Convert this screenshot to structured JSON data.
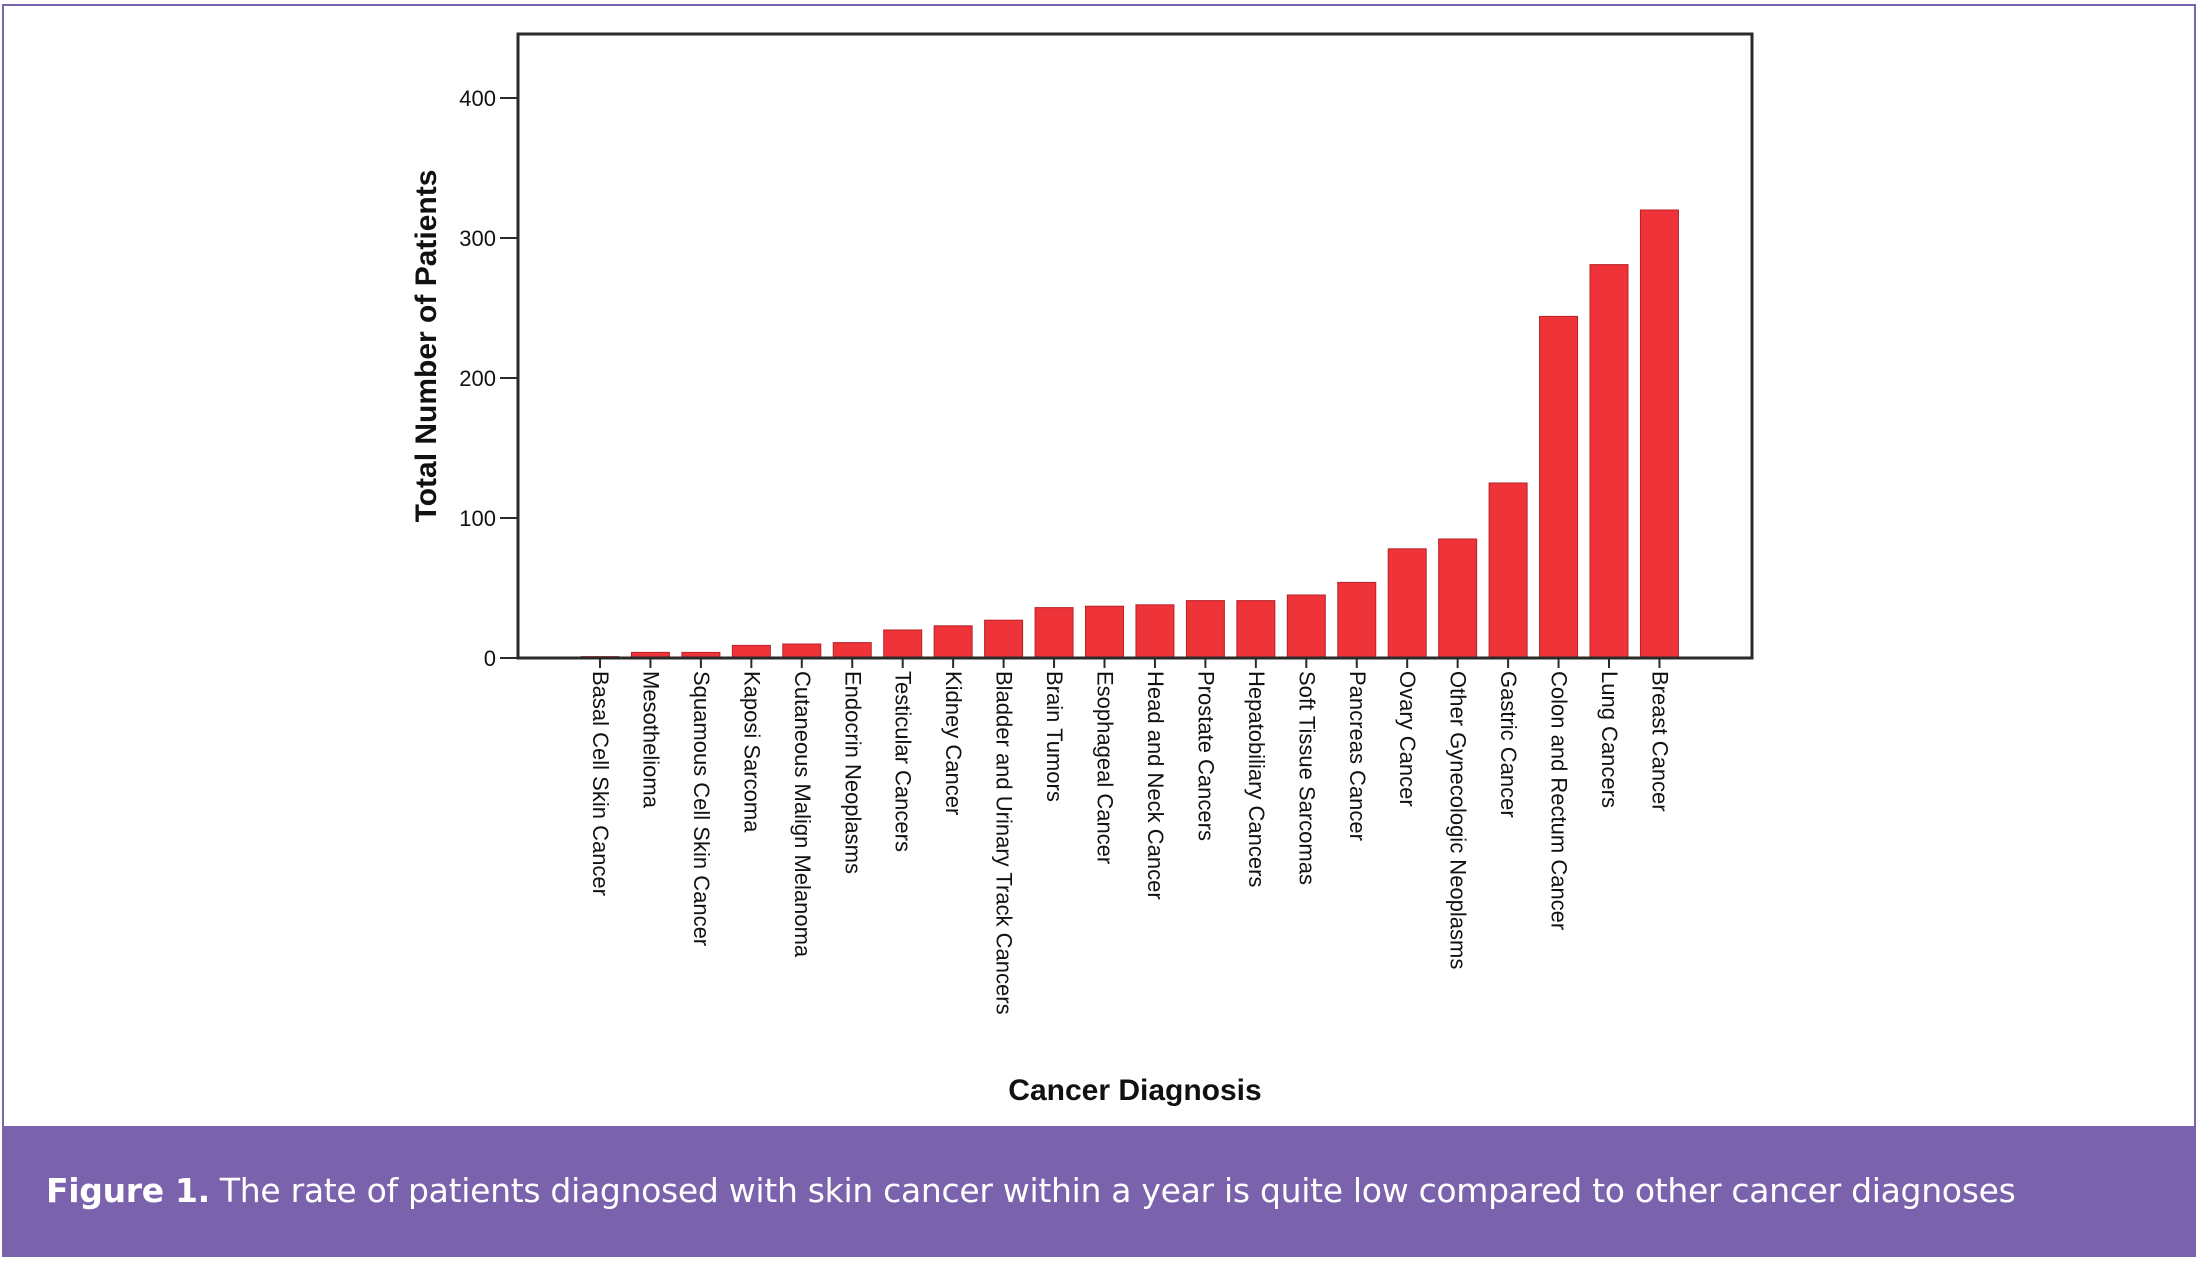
{
  "caption": {
    "label": "Figure 1.",
    "text": "The rate of patients diagnosed with skin cancer within a year is quite low compared to other cancer diagnoses"
  },
  "colors": {
    "bar": "#ee3339",
    "frame": "#7a62ad",
    "caption_background": "#7b62ac"
  },
  "chart_data": {
    "type": "bar",
    "xlabel": "Cancer Diagnosis",
    "ylabel": "Total Number of Patients",
    "ylim": [
      0,
      445
    ],
    "yticks": [
      0,
      100,
      200,
      300,
      400
    ],
    "grid": false,
    "categories": [
      "Basal Cell Skin Cancer",
      "Mesothelioma",
      "Squamous Cell Skin Cancer",
      "Kaposi Sarcoma",
      "Cutaneous Malign Melanoma",
      "Endocrin Neoplasms",
      "Testicular Cancers",
      "Kidney Cancer",
      "Bladder and Urinary Track Cancers",
      "Brain Tumors",
      "Esophageal Cancer",
      "Head and Neck Cancer",
      "Prostate Cancers",
      "Hepatobiliary Cancers",
      "Soft Tissue Sarcomas",
      "Pancreas Cancer",
      "Ovary Cancer",
      "Other Gynecologic Neoplasms",
      "Gastric Cancer",
      "Colon and Rectum Cancer",
      "Lung Cancers",
      "Breast Cancer"
    ],
    "values": [
      1,
      4,
      4,
      9,
      10,
      11,
      20,
      23,
      27,
      36,
      37,
      38,
      41,
      41,
      45,
      54,
      78,
      85,
      125,
      244,
      281,
      320
    ]
  }
}
